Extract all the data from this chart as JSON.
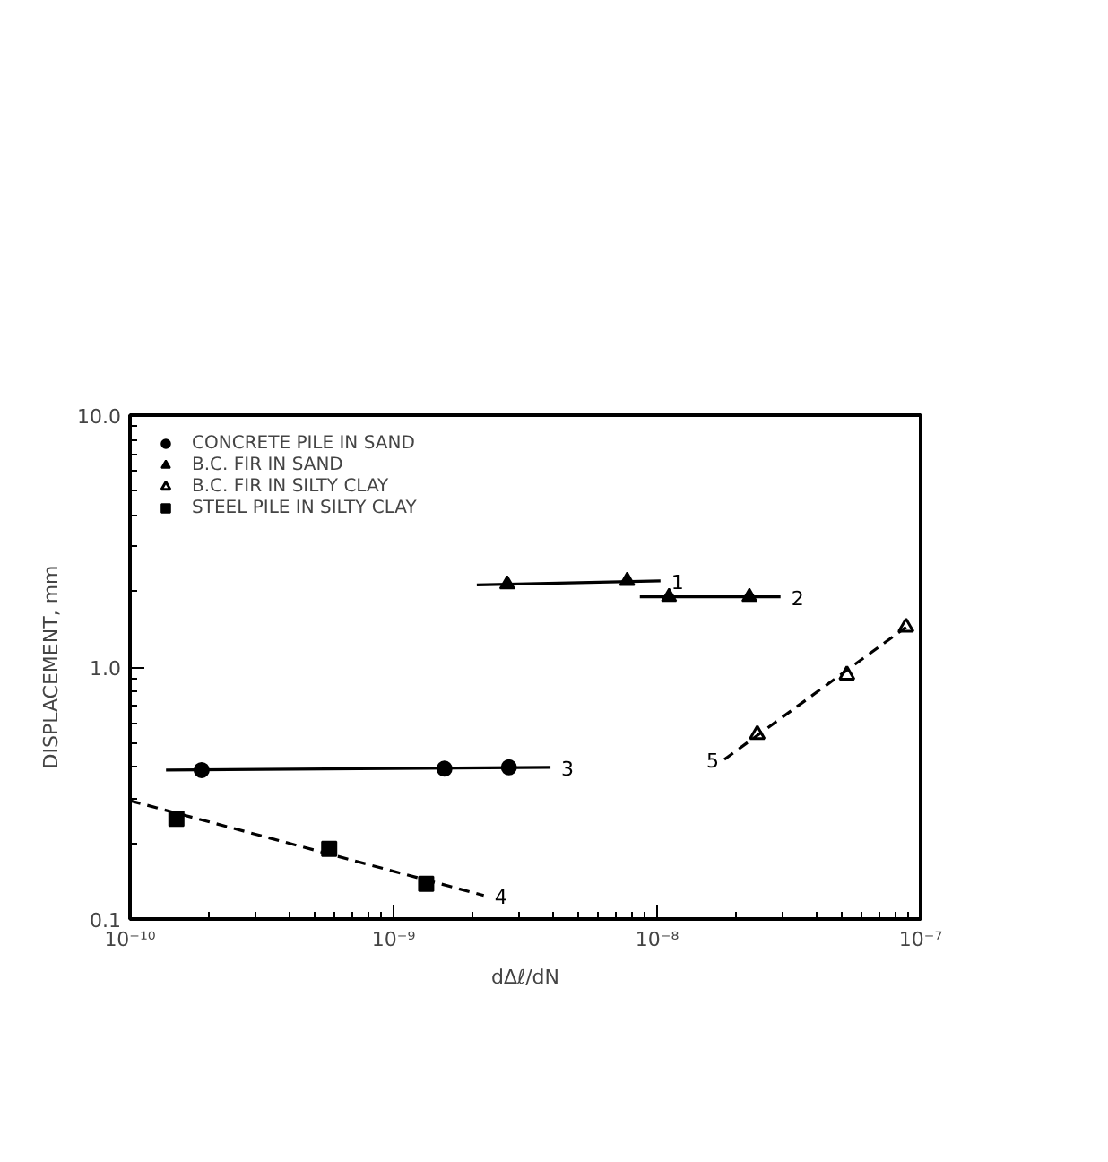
{
  "chart_data": {
    "type": "scatter",
    "xlabel": "dΔℓ/dN",
    "ylabel": "DISPLACEMENT, mm",
    "log": "xy",
    "grid": false,
    "legend": "top left",
    "xlim": [
      1e-10,
      1e-07
    ],
    "ylim": [
      0.1,
      10.0
    ],
    "xticks": [
      {
        "value": 1e-10,
        "label": "10⁻¹⁰"
      },
      {
        "value": 1e-09,
        "label": "10⁻⁹"
      },
      {
        "value": 1e-08,
        "label": "10⁻⁸"
      },
      {
        "value": 1e-07,
        "label": "10⁻⁷"
      }
    ],
    "yticks": [
      {
        "value": 0.1,
        "label": "0.1"
      },
      {
        "value": 1.0,
        "label": "1.0"
      },
      {
        "value": 10.0,
        "label": "10.0"
      }
    ],
    "series": [
      {
        "name": "CONCRETE PILE IN SAND",
        "marker": "circle",
        "color": "#000000",
        "x": [
          1.87e-10,
          1.56e-09,
          2.74e-09
        ],
        "values": [
          0.39,
          0.395,
          0.4
        ]
      },
      {
        "name": "B.C. FIR IN SAND",
        "marker": "triangle",
        "color": "#000000",
        "x": [
          2.7e-09,
          7.7e-09,
          1.11e-08,
          2.24e-08
        ],
        "values": [
          2.13,
          2.2,
          1.9,
          1.9
        ]
      },
      {
        "name": "B.C. FIR IN SILTY CLAY",
        "marker": "triangle",
        "color": "#ffffff",
        "x": [
          2.4e-08,
          5.25e-08,
          8.8e-08
        ],
        "values": [
          0.54,
          0.93,
          1.44
        ]
      },
      {
        "name": "STEEL PILE IN SILTY CLAY",
        "marker": "square",
        "color": "#000000",
        "x": [
          1.5e-10,
          5.7e-10,
          1.33e-09
        ],
        "values": [
          0.25,
          0.19,
          0.138
        ]
      },
      {
        "type": "line",
        "line_style": "solid",
        "color": "#000000",
        "x": [
          2.07e-09,
          1.03e-08
        ],
        "values": [
          2.12,
          2.2
        ]
      },
      {
        "type": "line",
        "line_style": "solid",
        "color": "#000000",
        "x": [
          8.6e-09,
          2.94e-08
        ],
        "values": [
          1.9,
          1.9
        ]
      },
      {
        "type": "line",
        "line_style": "solid",
        "color": "#000000",
        "x": [
          1.37e-10,
          3.94e-09
        ],
        "values": [
          0.39,
          0.4
        ]
      },
      {
        "type": "line",
        "line_style": "dashed",
        "color": "#000000",
        "x": [
          1e-10,
          2.2e-09
        ],
        "values": [
          0.295,
          0.124
        ]
      },
      {
        "type": "line",
        "line_style": "dashed",
        "color": "#000000",
        "x": [
          1.8e-08,
          8.8e-08
        ],
        "values": [
          0.43,
          1.44
        ]
      }
    ],
    "annotations": [
      {
        "text": "1",
        "x": 1.03e-08,
        "y": 2.2
      },
      {
        "text": "2",
        "x": 2.94e-08,
        "y": 1.9
      },
      {
        "text": "3",
        "x": 3.94e-09,
        "y": 0.4
      },
      {
        "text": "4",
        "x": 2.2e-09,
        "y": 0.124
      },
      {
        "text": "5",
        "x": 1.8e-08,
        "y": 0.43
      }
    ]
  }
}
